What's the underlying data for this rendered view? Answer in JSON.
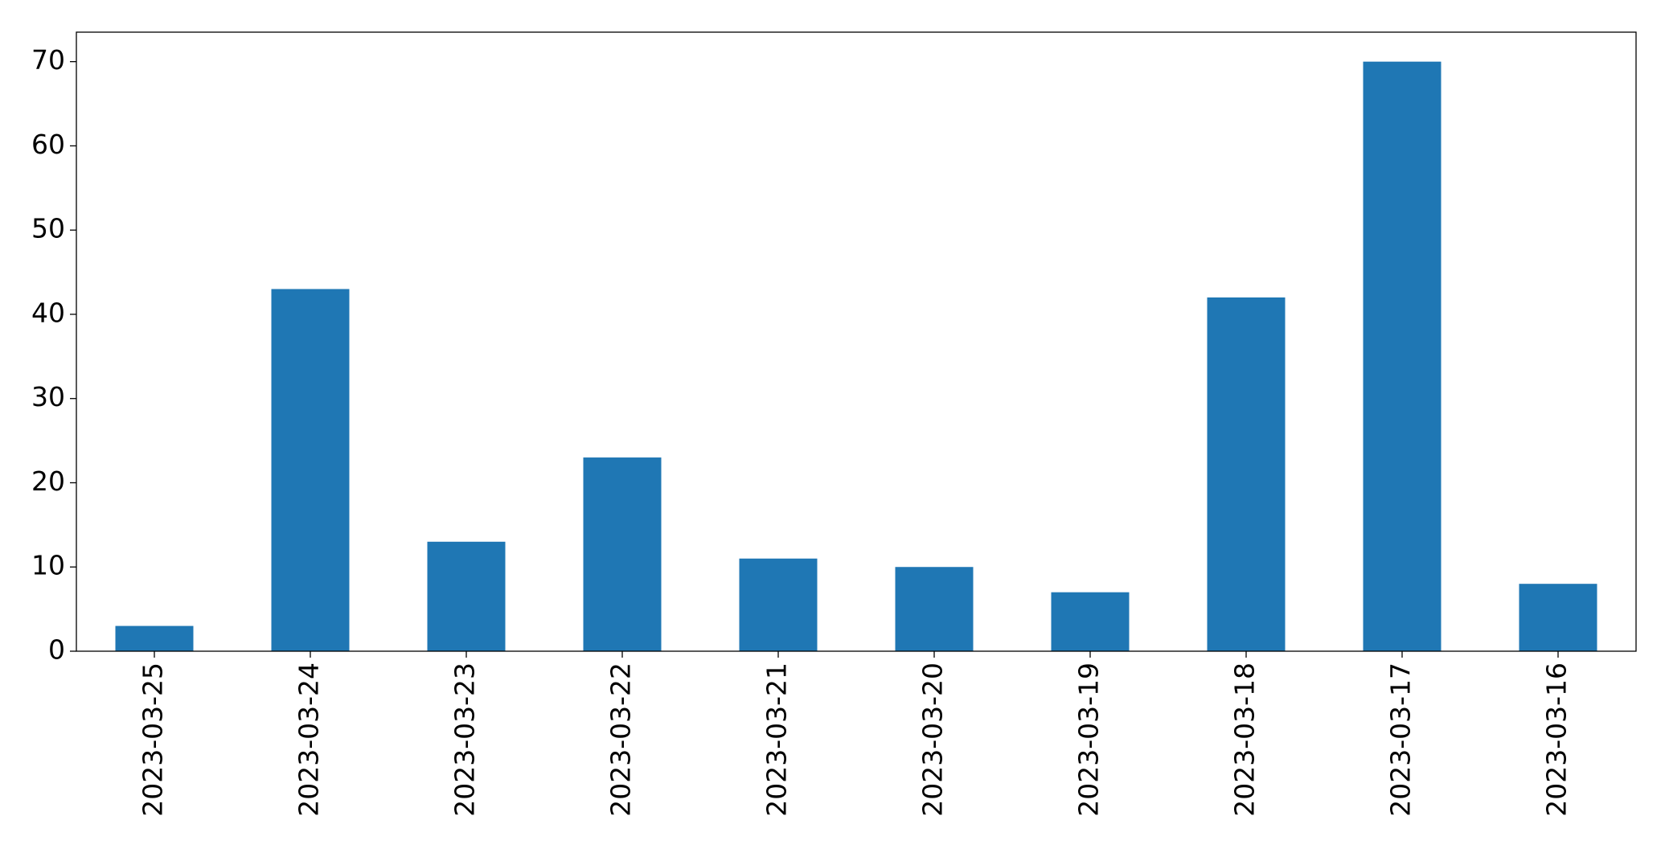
{
  "chart_data": {
    "type": "bar",
    "categories": [
      "2023-03-25",
      "2023-03-24",
      "2023-03-23",
      "2023-03-22",
      "2023-03-21",
      "2023-03-20",
      "2023-03-19",
      "2023-03-18",
      "2023-03-17",
      "2023-03-16"
    ],
    "values": [
      3,
      43,
      13,
      23,
      11,
      10,
      7,
      42,
      70,
      8
    ],
    "color": "#1f77b4",
    "ylim": [
      0,
      73.5
    ],
    "yticks": [
      0,
      10,
      20,
      30,
      40,
      50,
      60,
      70
    ],
    "grid": false
  }
}
